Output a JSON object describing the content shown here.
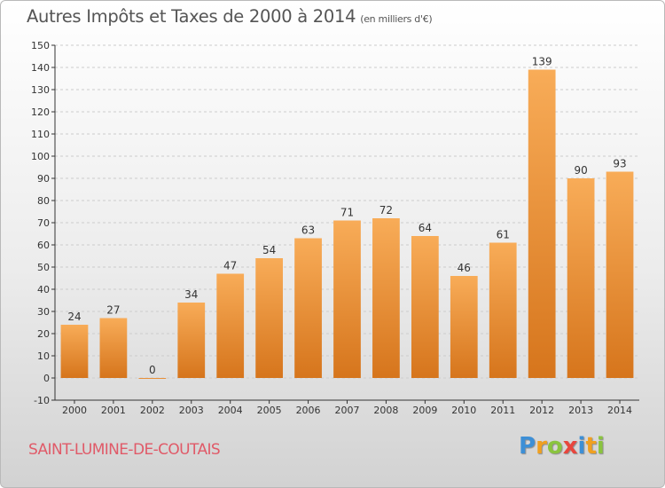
{
  "title": "Autres Impôts et Taxes de 2000 à 2014",
  "subtitle": "(en milliers d'€)",
  "commune": "SAINT-LUMINE-DE-COUTAIS",
  "brand": {
    "letters": [
      "P",
      "r",
      "o",
      "x",
      "i",
      "t",
      "i"
    ],
    "colors": [
      "#3d8fd6",
      "#f0a020",
      "#8ac43f",
      "#e8463d",
      "#3d8fd6",
      "#f0a020",
      "#8ac43f"
    ]
  },
  "colors": {
    "bar_light": "#f8ac58",
    "bar_dark": "#d6751c",
    "axis": "#333333",
    "grid": "#cccccc"
  },
  "chart_data": {
    "type": "bar",
    "categories": [
      "2000",
      "2001",
      "2002",
      "2003",
      "2004",
      "2005",
      "2006",
      "2007",
      "2008",
      "2009",
      "2010",
      "2011",
      "2012",
      "2013",
      "2014"
    ],
    "values": [
      24,
      27,
      0,
      34,
      47,
      54,
      63,
      71,
      72,
      64,
      46,
      61,
      139,
      90,
      93
    ],
    "ylim": [
      -10,
      150
    ],
    "yticks": [
      -10,
      0,
      10,
      20,
      30,
      40,
      50,
      60,
      70,
      80,
      90,
      100,
      110,
      120,
      130,
      140,
      150
    ],
    "grid": true,
    "data_labels": true
  }
}
